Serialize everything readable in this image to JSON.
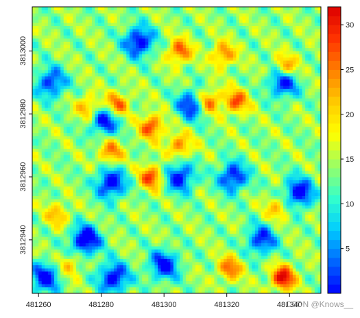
{
  "chart_data": {
    "type": "heatmap",
    "title": "",
    "xlabel": "",
    "ylabel": "",
    "x_ticks": [
      481260,
      481280,
      481300,
      481320,
      481340
    ],
    "y_ticks": [
      3812940,
      3812960,
      3812980,
      3813000
    ],
    "xlim": [
      481258,
      481350
    ],
    "ylim": [
      3812923,
      3813014
    ],
    "legend": {
      "type": "colorbar",
      "placement": "right",
      "ticks": [
        5,
        10,
        15,
        20,
        25,
        30
      ],
      "range": [
        0,
        32
      ],
      "colors": [
        "#0000ff",
        "#0066ff",
        "#00ccff",
        "#33ffcc",
        "#99ff66",
        "#ffff00",
        "#ffcc00",
        "#ff8000",
        "#ff3300",
        "#dd0000"
      ]
    },
    "grid": false,
    "field_description_hotspots": [
      {
        "x": 481276,
        "y": 3812982,
        "v": 24
      },
      {
        "x": 481285,
        "y": 3812983,
        "v": 27
      },
      {
        "x": 481296,
        "y": 3812976,
        "v": 28
      },
      {
        "x": 481305,
        "y": 3813000,
        "v": 27
      },
      {
        "x": 481314,
        "y": 3812984,
        "v": 28
      },
      {
        "x": 481319,
        "y": 3812999,
        "v": 25
      },
      {
        "x": 481323,
        "y": 3812984,
        "v": 27
      },
      {
        "x": 481296,
        "y": 3812960,
        "v": 28
      },
      {
        "x": 481338,
        "y": 3812928,
        "v": 32
      },
      {
        "x": 481321,
        "y": 3812931,
        "v": 26
      },
      {
        "x": 481305,
        "y": 3812970,
        "v": 25
      },
      {
        "x": 481283,
        "y": 3812968,
        "v": 25
      },
      {
        "x": 481339,
        "y": 3812995,
        "v": 25
      },
      {
        "x": 481336,
        "y": 3812950,
        "v": 22
      },
      {
        "x": 481266,
        "y": 3812948,
        "v": 22
      },
      {
        "x": 481270,
        "y": 3812932,
        "v": 21
      }
    ],
    "field_description_lows": [
      {
        "x": 481292,
        "y": 3813003,
        "v": 2
      },
      {
        "x": 481309,
        "y": 3812983,
        "v": 3
      },
      {
        "x": 481264,
        "y": 3812990,
        "v": 4
      },
      {
        "x": 481281,
        "y": 3812978,
        "v": 3
      },
      {
        "x": 481283,
        "y": 3812958,
        "v": 2
      },
      {
        "x": 481275,
        "y": 3812940,
        "v": 1
      },
      {
        "x": 481305,
        "y": 3812960,
        "v": 3
      },
      {
        "x": 481322,
        "y": 3812960,
        "v": 3
      },
      {
        "x": 481343,
        "y": 3812955,
        "v": 2
      },
      {
        "x": 481300,
        "y": 3812932,
        "v": 3
      },
      {
        "x": 481284,
        "y": 3812928,
        "v": 2
      },
      {
        "x": 481262,
        "y": 3812928,
        "v": 3
      },
      {
        "x": 481331,
        "y": 3812940,
        "v": 4
      },
      {
        "x": 481338,
        "y": 3812990,
        "v": 3
      }
    ]
  },
  "watermark": "CSDN @Knows__"
}
